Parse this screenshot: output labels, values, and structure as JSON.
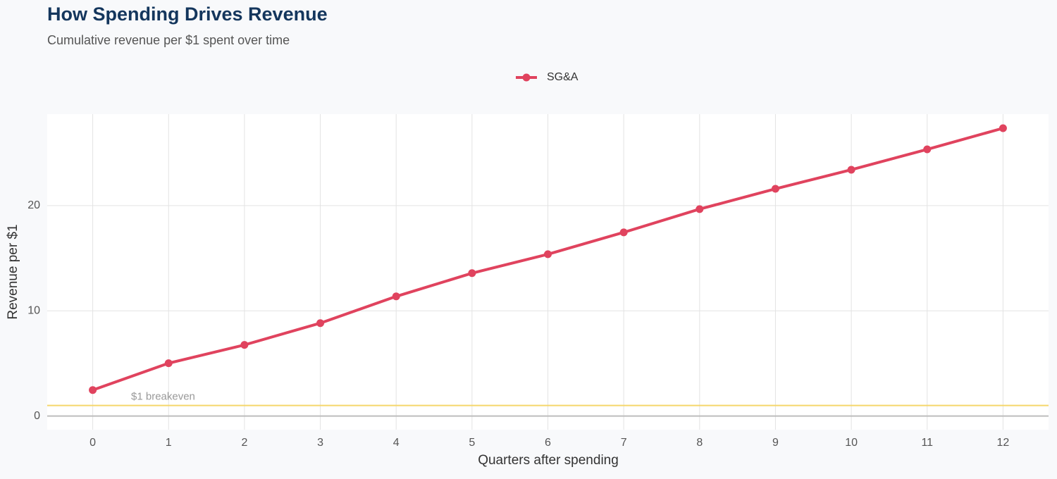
{
  "chart_data": {
    "type": "line",
    "title": "How Spending Drives Revenue",
    "subtitle": "Cumulative revenue per $1 spent over time",
    "xlabel": "Quarters after spending",
    "ylabel": "Revenue per $1",
    "x": [
      0,
      1,
      2,
      3,
      4,
      5,
      6,
      7,
      8,
      9,
      10,
      11,
      12
    ],
    "series": [
      {
        "name": "SG&A",
        "color": "#e0435e",
        "values": [
          2.47,
          5.02,
          6.76,
          8.83,
          11.37,
          13.58,
          15.38,
          17.46,
          19.67,
          21.6,
          23.41,
          25.35,
          27.36
        ]
      }
    ],
    "xlim": [
      -0.6,
      12.6
    ],
    "ylim": [
      -1.3,
      28.7
    ],
    "xticks": [
      0,
      1,
      2,
      3,
      4,
      5,
      6,
      7,
      8,
      9,
      10,
      11,
      12
    ],
    "yticks": [
      0,
      10,
      20
    ],
    "grid": true,
    "legend": "top",
    "reference_line": {
      "value": 1,
      "label": "$1 breakeven",
      "color": "#f5d66b"
    }
  }
}
